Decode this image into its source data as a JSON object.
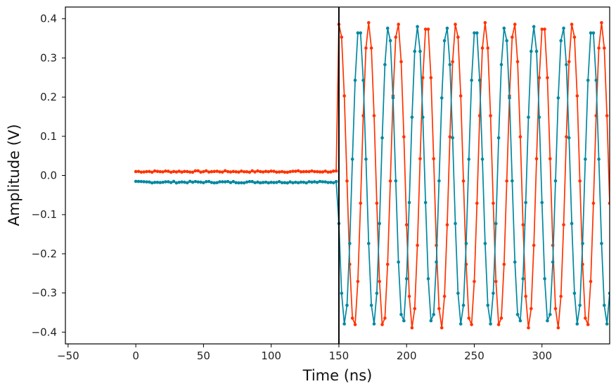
{
  "chart_data": {
    "type": "line",
    "title": "",
    "xlabel": "Time (ns)",
    "ylabel": "Amplitude (V)",
    "xlim": [
      -52,
      350
    ],
    "ylim": [
      -0.43,
      0.43
    ],
    "xticks": [
      -50,
      0,
      50,
      100,
      150,
      200,
      250,
      300
    ],
    "xtick_labels": [
      "−50",
      "0",
      "50",
      "100",
      "150",
      "200",
      "250",
      "300"
    ],
    "yticks": [
      -0.4,
      -0.3,
      -0.2,
      -0.1,
      0.0,
      0.1,
      0.2,
      0.3,
      0.4
    ],
    "ytick_labels": [
      "−0.4",
      "−0.3",
      "−0.2",
      "−0.1",
      "0.0",
      "0.1",
      "0.2",
      "0.3",
      "0.4"
    ],
    "grid": false,
    "legend": "none",
    "markers": "small filled circles every 2 ns",
    "vertical_line": {
      "x": 150,
      "color": "#000000"
    },
    "series": [
      {
        "color": "#ff3300",
        "baseline": {
          "x_start": 0,
          "x_end": 148,
          "value": 0.01
        },
        "sine": {
          "x_start": 150,
          "x_end": 350,
          "amplitude": 0.39,
          "period_ns": 21.5,
          "first_peak_x": 150.5
        }
      },
      {
        "color": "#0088a0",
        "baseline": {
          "x_start": 0,
          "x_end": 148,
          "value": -0.017
        },
        "sine": {
          "x_start": 150,
          "x_end": 350,
          "amplitude": 0.38,
          "period_ns": 21.5,
          "first_peak_x": 165.0
        }
      }
    ]
  }
}
